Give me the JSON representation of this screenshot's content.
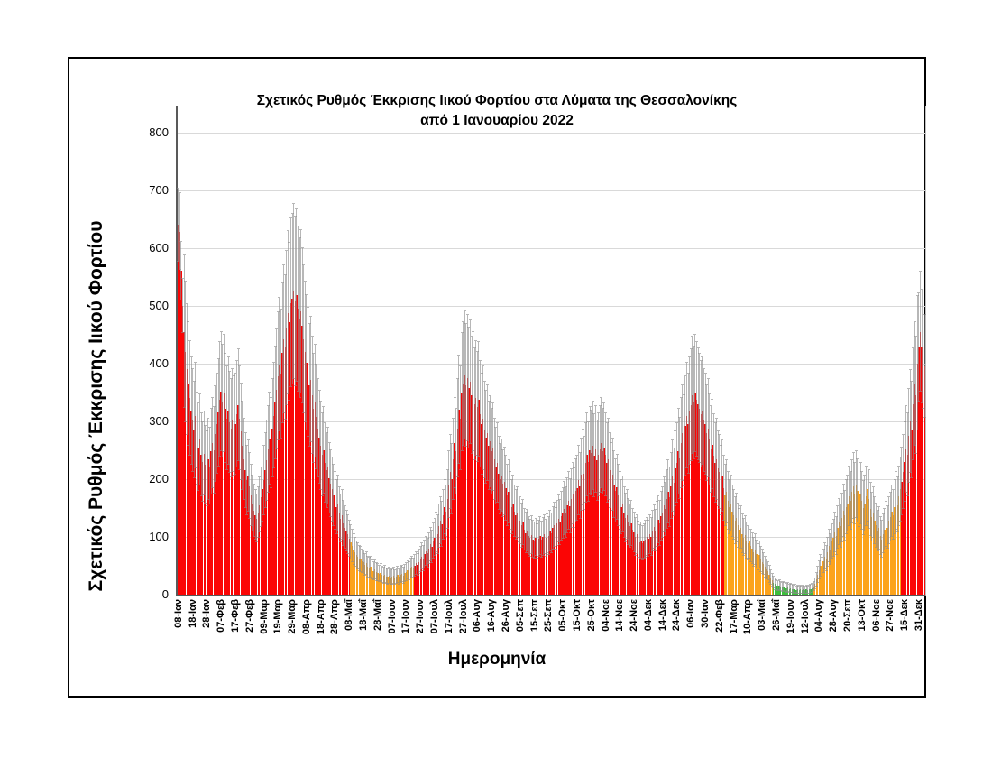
{
  "figure": {
    "title_line1": "Σχετικός Ρυθμός Έκκρισης Ιικού Φορτίου στα Λύματα της Θεσσαλονίκης",
    "title_line2": "από 1 Ιανουαρίου 2022",
    "y_axis_title": "Σχετικός Ρυθμός Έκκρισης Ιικού Φορτίου",
    "x_axis_title": "Ημερομηνία"
  },
  "chart_data": {
    "type": "bar",
    "title": "Σχετικός Ρυθμός Έκκρισης Ιικού Φορτίου στα Λύματα της Θεσσαλονίκης",
    "subtitle": "από 1 Ιανουαρίου 2022",
    "xlabel": "Ημερομηνία",
    "ylabel": "Σχετικός Ρυθμός Έκκρισης Ιικού Φορτίου",
    "ylim": [
      0,
      845
    ],
    "y_ticks": [
      0,
      100,
      200,
      300,
      400,
      500,
      600,
      700,
      800
    ],
    "grid": "horizontal",
    "legend": "none",
    "x_tick_every_n_bars": 10,
    "x_tick_labels": [
      "08-Ιαν",
      "18-Ιαν",
      "28-Ιαν",
      "07-Φεβ",
      "17-Φεβ",
      "27-Φεβ",
      "09-Μαρ",
      "19-Μαρ",
      "29-Μαρ",
      "08-Απρ",
      "18-Απρ",
      "28-Απρ",
      "08-Μαΐ",
      "18-Μαΐ",
      "28-Μαΐ",
      "07-Ιουν",
      "17-Ιουν",
      "27-Ιουν",
      "07-Ιουλ",
      "17-Ιουλ",
      "27-Ιουλ",
      "06-Αυγ",
      "16-Αυγ",
      "26-Αυγ",
      "05-Σεπ",
      "15-Σεπ",
      "25-Σεπ",
      "05-Οκτ",
      "15-Οκτ",
      "25-Οκτ",
      "04-Νοε",
      "14-Νοε",
      "24-Νοε",
      "04-Δεκ",
      "14-Δεκ",
      "24-Δεκ",
      "06-Ιαν",
      "30-Ιαν",
      "22-Φεβ",
      "17-Μαρ",
      "10-Απρ",
      "03-Μαΐ",
      "26-Μαΐ",
      "19-Ιουν",
      "12-Ιουλ",
      "04-Αυγ",
      "28-Αυγ",
      "20-Σεπ",
      "13-Οκτ",
      "06-Νοε",
      "27-Νοε",
      "15-Δεκ",
      "31-Δεκ"
    ],
    "values": [
      640,
      628,
      560,
      500,
      455,
      420,
      390,
      365,
      340,
      318,
      302,
      285,
      310,
      270,
      255,
      268,
      242,
      230,
      244,
      225,
      218,
      235,
      222,
      248,
      262,
      250,
      278,
      296,
      315,
      338,
      352,
      335,
      348,
      322,
      305,
      318,
      298,
      288,
      302,
      292,
      295,
      312,
      328,
      305,
      282,
      258,
      235,
      215,
      198,
      205,
      188,
      172,
      158,
      146,
      138,
      132,
      142,
      155,
      168,
      182,
      198,
      215,
      232,
      252,
      270,
      262,
      288,
      310,
      332,
      355,
      378,
      398,
      382,
      418,
      442,
      428,
      462,
      488,
      472,
      505,
      512,
      525,
      508,
      518,
      495,
      478,
      490,
      465,
      442,
      420,
      402,
      385,
      362,
      372,
      345,
      322,
      335,
      308,
      288,
      272,
      258,
      242,
      250,
      228,
      215,
      222,
      202,
      192,
      182,
      172,
      162,
      152,
      158,
      142,
      132,
      138,
      124,
      116,
      110,
      104,
      97,
      90,
      84,
      78,
      73,
      69,
      66,
      63,
      61,
      58,
      56,
      52,
      54,
      48,
      46,
      48,
      43,
      41,
      43,
      39,
      38,
      36,
      38,
      34,
      33,
      35,
      32,
      31,
      33,
      30,
      31,
      33,
      30,
      32,
      34,
      31,
      34,
      36,
      33,
      37,
      39,
      42,
      40,
      45,
      48,
      45,
      50,
      54,
      51,
      57,
      61,
      66,
      63,
      70,
      75,
      72,
      80,
      87,
      83,
      93,
      99,
      108,
      104,
      118,
      128,
      122,
      138,
      152,
      144,
      165,
      190,
      212,
      200,
      235,
      262,
      248,
      288,
      320,
      305,
      350,
      365,
      380,
      362,
      375,
      358,
      368,
      345,
      352,
      330,
      340,
      325,
      338,
      312,
      295,
      305,
      285,
      272,
      280,
      258,
      265,
      248,
      255,
      235,
      222,
      228,
      210,
      200,
      206,
      192,
      196,
      184,
      172,
      178,
      162,
      152,
      158,
      144,
      138,
      142,
      132,
      128,
      120,
      125,
      113,
      107,
      111,
      102,
      98,
      103,
      96,
      94,
      99,
      92,
      97,
      101,
      95,
      100,
      104,
      98,
      105,
      102,
      110,
      106,
      115,
      121,
      114,
      124,
      131,
      125,
      136,
      140,
      149,
      142,
      154,
      162,
      153,
      166,
      175,
      167,
      180,
      185,
      198,
      188,
      208,
      220,
      210,
      228,
      242,
      230,
      250,
      245,
      258,
      240,
      252,
      232,
      242,
      252,
      262,
      248,
      255,
      242,
      228,
      235,
      215,
      202,
      208,
      190,
      180,
      186,
      172,
      162,
      152,
      156,
      142,
      133,
      138,
      126,
      119,
      123,
      113,
      108,
      100,
      104,
      95,
      91,
      94,
      89,
      92,
      96,
      100,
      97,
      104,
      100,
      110,
      117,
      111,
      122,
      130,
      124,
      136,
      142,
      155,
      148,
      165,
      178,
      168,
      188,
      205,
      194,
      218,
      228,
      248,
      236,
      262,
      280,
      266,
      292,
      310,
      296,
      318,
      328,
      345,
      332,
      348,
      338,
      330,
      322,
      312,
      318,
      302,
      295,
      280,
      288,
      268,
      252,
      260,
      240,
      228,
      235,
      218,
      212,
      198,
      205,
      185,
      172,
      178,
      162,
      152,
      158,
      144,
      138,
      128,
      133,
      120,
      112,
      116,
      105,
      99,
      103,
      94,
      89,
      94,
      85,
      80,
      74,
      78,
      70,
      65,
      68,
      61,
      57,
      53,
      48,
      44,
      40,
      35,
      30,
      25,
      21,
      18,
      16,
      15,
      16,
      14,
      13,
      14,
      12,
      11,
      12,
      10,
      11,
      10,
      9,
      10,
      8,
      9,
      8,
      9,
      8,
      9,
      8,
      9,
      8,
      9,
      10,
      11,
      14,
      19,
      26,
      34,
      42,
      50,
      46,
      58,
      66,
      62,
      74,
      84,
      78,
      92,
      98,
      108,
      102,
      116,
      126,
      119,
      133,
      145,
      137,
      152,
      158,
      170,
      162,
      178,
      188,
      175,
      190,
      180,
      168,
      175,
      162,
      150,
      158,
      170,
      182,
      165,
      148,
      135,
      142,
      128,
      120,
      110,
      115,
      102,
      96,
      105,
      112,
      122,
      116,
      128,
      134,
      144,
      138,
      152,
      162,
      155,
      170,
      182,
      196,
      212,
      230,
      252,
      242,
      275,
      300,
      285,
      330,
      365,
      345,
      400,
      428,
      455,
      430,
      415,
      395
    ],
    "error_model": {
      "ratio": 0.28,
      "base": 6,
      "overrides": {
        "0": 65,
        "1": 68,
        "2": 52,
        "3": 48,
        "520": 95,
        "521": 105,
        "522": 100,
        "523": 95,
        "524": 90
      }
    },
    "color_segments": [
      {
        "from": 0,
        "to": 120,
        "color": "red"
      },
      {
        "from": 121,
        "to": 165,
        "color": "orange"
      },
      {
        "from": 166,
        "to": 383,
        "color": "red"
      },
      {
        "from": 384,
        "to": 417,
        "color": "orange"
      },
      {
        "from": 418,
        "to": 445,
        "color": "green"
      },
      {
        "from": 446,
        "to": 507,
        "color": "orange"
      },
      {
        "from": 508,
        "to": 524,
        "color": "red"
      }
    ],
    "colors": {
      "red": "#fb0505",
      "orange": "#fca31c",
      "green": "#3bbe3b",
      "error_bar": "#8c8c8c",
      "grid": "#d9d9d9",
      "axis": "#595959",
      "text": "#000000"
    }
  }
}
